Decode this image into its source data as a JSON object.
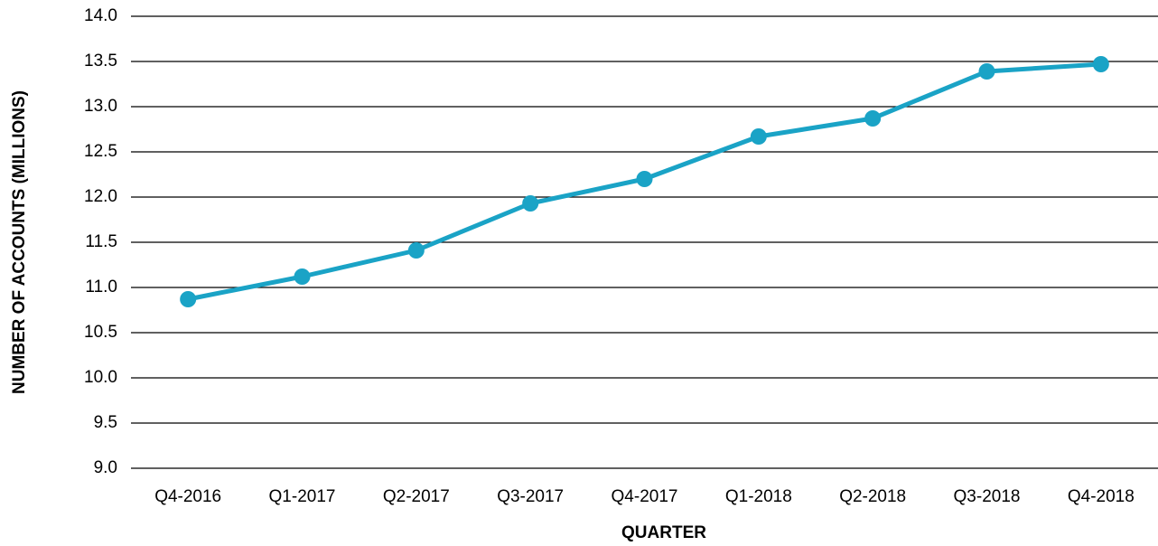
{
  "chart_data": {
    "type": "line",
    "x_label": "QUARTER",
    "y_label": "NUMBER OF ACCOUNTS (MILLIONS)",
    "categories": [
      "Q4-2016",
      "Q1-2017",
      "Q2-2017",
      "Q3-2017",
      "Q4-2017",
      "Q1-2018",
      "Q2-2018",
      "Q3-2018",
      "Q4-2018"
    ],
    "values": [
      10.87,
      11.12,
      11.41,
      11.93,
      12.2,
      12.67,
      12.87,
      13.39,
      13.47
    ],
    "color": "#1aa3c6",
    "ylim": [
      9,
      14
    ],
    "yticks": [
      {
        "value": 9,
        "label": "9.0"
      },
      {
        "value": 9.5,
        "label": "9.5"
      },
      {
        "value": 10,
        "label": "10.0"
      },
      {
        "value": 10.5,
        "label": "10.5"
      },
      {
        "value": 11,
        "label": "11.0"
      },
      {
        "value": 11.5,
        "label": "11.5"
      },
      {
        "value": 12,
        "label": "12.0"
      },
      {
        "value": 12.5,
        "label": "12.5"
      },
      {
        "value": 13,
        "label": "13.0"
      },
      {
        "value": 13.5,
        "label": "13.5"
      },
      {
        "value": 14,
        "label": "14.0"
      }
    ],
    "grid": true
  }
}
